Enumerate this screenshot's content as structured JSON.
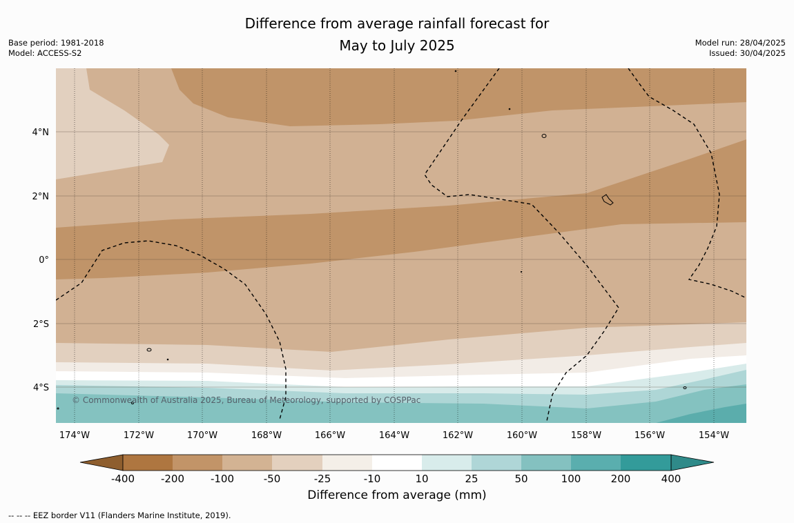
{
  "title": {
    "line1": "Difference from average rainfall forecast for",
    "line2": "May to July 2025"
  },
  "meta_left": {
    "base_period": "Base period: 1981-2018",
    "model": "Model: ACCESS-S2"
  },
  "meta_right": {
    "model_run": "Model run: 28/04/2025",
    "issued": "Issued: 30/04/2025"
  },
  "map": {
    "lon_labels": [
      "174°W",
      "172°W",
      "170°W",
      "168°W",
      "166°W",
      "164°W",
      "162°W",
      "160°W",
      "158°W",
      "156°W",
      "154°W"
    ],
    "lat_labels": [
      "4°N",
      "2°N",
      "0°",
      "2°S",
      "4°S"
    ],
    "copyright": "© Commonwealth of Australia 2025, Bureau of Meteorology, supported by COSPPac",
    "grid": "on"
  },
  "legend": {
    "ticks": [
      "-400",
      "-200",
      "-100",
      "-50",
      "-25",
      "-10",
      "10",
      "25",
      "50",
      "100",
      "200",
      "400"
    ],
    "colors": [
      "#8e5e2e",
      "#ae7640",
      "#c29468",
      "#d3b393",
      "#e3d0be",
      "#f4efe8",
      "#ffffff",
      "#d8eceb",
      "#afd6d7",
      "#84c1c0",
      "#5aaeae",
      "#339b9a",
      "#2f8a89"
    ],
    "units_label": "Difference from average (mm)"
  },
  "footnote": "--  --  -- EEZ border V11 (Flanders Marine Institute, 2019)."
}
